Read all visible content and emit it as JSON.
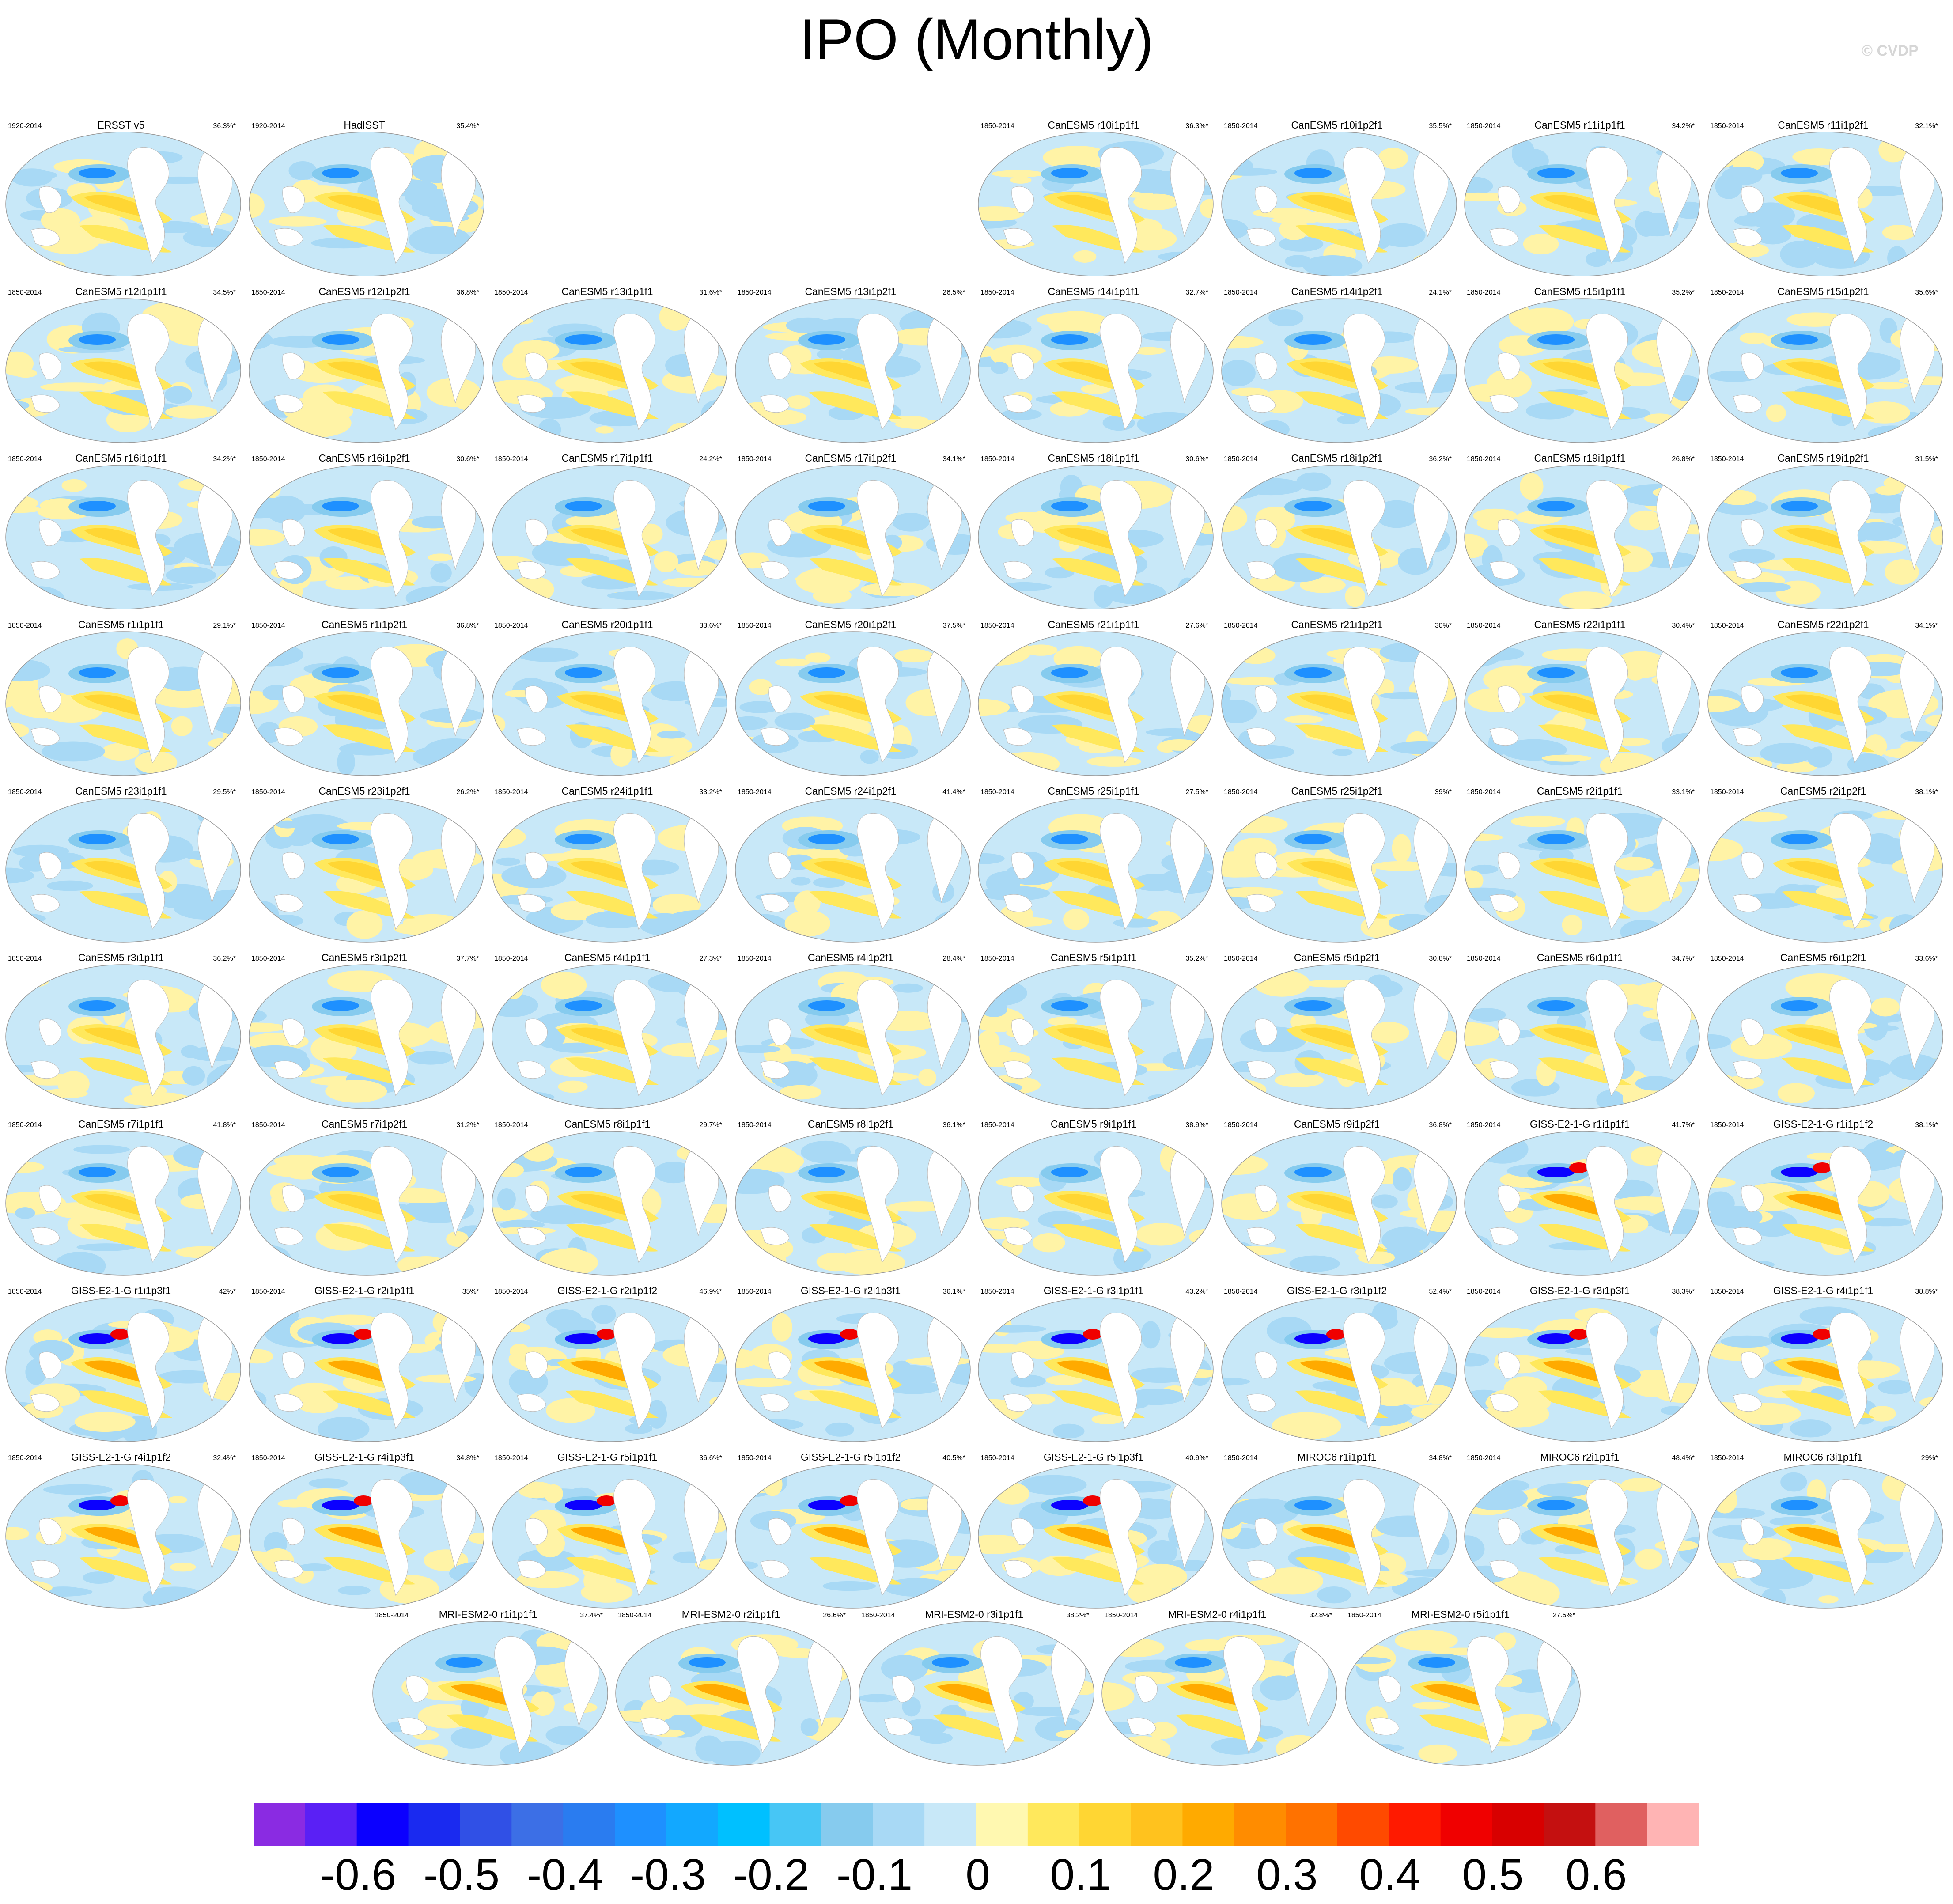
{
  "title": "IPO (Monthly)",
  "copyright": "© CVDP",
  "colorbar": {
    "colors": [
      "#8a2be2",
      "#5a20f5",
      "#0b00ff",
      "#1a2af0",
      "#3050e6",
      "#3c6fe6",
      "#2a7cf0",
      "#1e90ff",
      "#12a8ff",
      "#00c0ff",
      "#47c6f5",
      "#86cbee",
      "#a8d9f5",
      "#c8e8f8",
      "#fff8b0",
      "#ffe85c",
      "#ffd633",
      "#ffc21e",
      "#ffaa00",
      "#ff8c00",
      "#ff7200",
      "#ff4a00",
      "#ff1a00",
      "#f00000",
      "#d80000",
      "#c41010",
      "#e06060",
      "#ffb4b4"
    ],
    "labels": [
      "-0.6",
      "-0.5",
      "-0.4",
      "-0.3",
      "-0.2",
      "-0.1",
      "0",
      "0.1",
      "0.2",
      "0.3",
      "0.4",
      "0.5",
      "0.6"
    ]
  },
  "panels": [
    {
      "title": "ERSST v5",
      "years": "1920-2014",
      "pct": "36.3%*"
    },
    {
      "title": "HadISST",
      "years": "1920-2014",
      "pct": "35.4%*"
    },
    {
      "title": "CanESM5 r10i1p1f1",
      "years": "1850-2014",
      "pct": "36.3%*"
    },
    {
      "title": "CanESM5 r10i1p2f1",
      "years": "1850-2014",
      "pct": "35.5%*"
    },
    {
      "title": "CanESM5 r11i1p1f1",
      "years": "1850-2014",
      "pct": "34.2%*"
    },
    {
      "title": "CanESM5 r11i1p2f1",
      "years": "1850-2014",
      "pct": "32.1%*"
    },
    {
      "title": "CanESM5 r12i1p1f1",
      "years": "1850-2014",
      "pct": "34.5%*"
    },
    {
      "title": "CanESM5 r12i1p2f1",
      "years": "1850-2014",
      "pct": "36.8%*"
    },
    {
      "title": "CanESM5 r13i1p1f1",
      "years": "1850-2014",
      "pct": "31.6%*"
    },
    {
      "title": "CanESM5 r13i1p2f1",
      "years": "1850-2014",
      "pct": "26.5%*"
    },
    {
      "title": "CanESM5 r14i1p1f1",
      "years": "1850-2014",
      "pct": "32.7%*"
    },
    {
      "title": "CanESM5 r14i1p2f1",
      "years": "1850-2014",
      "pct": "24.1%*"
    },
    {
      "title": "CanESM5 r15i1p1f1",
      "years": "1850-2014",
      "pct": "35.2%*"
    },
    {
      "title": "CanESM5 r15i1p2f1",
      "years": "1850-2014",
      "pct": "35.6%*"
    },
    {
      "title": "CanESM5 r16i1p1f1",
      "years": "1850-2014",
      "pct": "34.2%*"
    },
    {
      "title": "CanESM5 r16i1p2f1",
      "years": "1850-2014",
      "pct": "30.6%*"
    },
    {
      "title": "CanESM5 r17i1p1f1",
      "years": "1850-2014",
      "pct": "24.2%*"
    },
    {
      "title": "CanESM5 r17i1p2f1",
      "years": "1850-2014",
      "pct": "34.1%*"
    },
    {
      "title": "CanESM5 r18i1p1f1",
      "years": "1850-2014",
      "pct": "30.6%*"
    },
    {
      "title": "CanESM5 r18i1p2f1",
      "years": "1850-2014",
      "pct": "36.2%*"
    },
    {
      "title": "CanESM5 r19i1p1f1",
      "years": "1850-2014",
      "pct": "26.8%*"
    },
    {
      "title": "CanESM5 r19i1p2f1",
      "years": "1850-2014",
      "pct": "31.5%*"
    },
    {
      "title": "CanESM5 r1i1p1f1",
      "years": "1850-2014",
      "pct": "29.1%*"
    },
    {
      "title": "CanESM5 r1i1p2f1",
      "years": "1850-2014",
      "pct": "36.8%*"
    },
    {
      "title": "CanESM5 r20i1p1f1",
      "years": "1850-2014",
      "pct": "33.6%*"
    },
    {
      "title": "CanESM5 r20i1p2f1",
      "years": "1850-2014",
      "pct": "37.5%*"
    },
    {
      "title": "CanESM5 r21i1p1f1",
      "years": "1850-2014",
      "pct": "27.6%*"
    },
    {
      "title": "CanESM5 r21i1p2f1",
      "years": "1850-2014",
      "pct": "30%*"
    },
    {
      "title": "CanESM5 r22i1p1f1",
      "years": "1850-2014",
      "pct": "30.4%*"
    },
    {
      "title": "CanESM5 r22i1p2f1",
      "years": "1850-2014",
      "pct": "34.1%*"
    },
    {
      "title": "CanESM5 r23i1p1f1",
      "years": "1850-2014",
      "pct": "29.5%*"
    },
    {
      "title": "CanESM5 r23i1p2f1",
      "years": "1850-2014",
      "pct": "26.2%*"
    },
    {
      "title": "CanESM5 r24i1p1f1",
      "years": "1850-2014",
      "pct": "33.2%*"
    },
    {
      "title": "CanESM5 r24i1p2f1",
      "years": "1850-2014",
      "pct": "41.4%*"
    },
    {
      "title": "CanESM5 r25i1p1f1",
      "years": "1850-2014",
      "pct": "27.5%*"
    },
    {
      "title": "CanESM5 r25i1p2f1",
      "years": "1850-2014",
      "pct": "39%*"
    },
    {
      "title": "CanESM5 r2i1p1f1",
      "years": "1850-2014",
      "pct": "33.1%*"
    },
    {
      "title": "CanESM5 r2i1p2f1",
      "years": "1850-2014",
      "pct": "38.1%*"
    },
    {
      "title": "CanESM5 r3i1p1f1",
      "years": "1850-2014",
      "pct": "36.2%*"
    },
    {
      "title": "CanESM5 r3i1p2f1",
      "years": "1850-2014",
      "pct": "37.7%*"
    },
    {
      "title": "CanESM5 r4i1p1f1",
      "years": "1850-2014",
      "pct": "27.3%*"
    },
    {
      "title": "CanESM5 r4i1p2f1",
      "years": "1850-2014",
      "pct": "28.4%*"
    },
    {
      "title": "CanESM5 r5i1p1f1",
      "years": "1850-2014",
      "pct": "35.2%*"
    },
    {
      "title": "CanESM5 r5i1p2f1",
      "years": "1850-2014",
      "pct": "30.8%*"
    },
    {
      "title": "CanESM5 r6i1p1f1",
      "years": "1850-2014",
      "pct": "34.7%*"
    },
    {
      "title": "CanESM5 r6i1p2f1",
      "years": "1850-2014",
      "pct": "33.6%*"
    },
    {
      "title": "CanESM5 r7i1p1f1",
      "years": "1850-2014",
      "pct": "41.8%*"
    },
    {
      "title": "CanESM5 r7i1p2f1",
      "years": "1850-2014",
      "pct": "31.2%*"
    },
    {
      "title": "CanESM5 r8i1p1f1",
      "years": "1850-2014",
      "pct": "29.7%*"
    },
    {
      "title": "CanESM5 r8i1p2f1",
      "years": "1850-2014",
      "pct": "36.1%*"
    },
    {
      "title": "CanESM5 r9i1p1f1",
      "years": "1850-2014",
      "pct": "38.9%*"
    },
    {
      "title": "CanESM5 r9i1p2f1",
      "years": "1850-2014",
      "pct": "36.8%*"
    },
    {
      "title": "GISS-E2-1-G r1i1p1f1",
      "years": "1850-2014",
      "pct": "41.7%*"
    },
    {
      "title": "GISS-E2-1-G r1i1p1f2",
      "years": "1850-2014",
      "pct": "38.1%*"
    },
    {
      "title": "GISS-E2-1-G r1i1p3f1",
      "years": "1850-2014",
      "pct": "42%*"
    },
    {
      "title": "GISS-E2-1-G r2i1p1f1",
      "years": "1850-2014",
      "pct": "35%*"
    },
    {
      "title": "GISS-E2-1-G r2i1p1f2",
      "years": "1850-2014",
      "pct": "46.9%*"
    },
    {
      "title": "GISS-E2-1-G r2i1p3f1",
      "years": "1850-2014",
      "pct": "36.1%*"
    },
    {
      "title": "GISS-E2-1-G r3i1p1f1",
      "years": "1850-2014",
      "pct": "43.2%*"
    },
    {
      "title": "GISS-E2-1-G r3i1p1f2",
      "years": "1850-2014",
      "pct": "52.4%*"
    },
    {
      "title": "GISS-E2-1-G r3i1p3f1",
      "years": "1850-2014",
      "pct": "38.3%*"
    },
    {
      "title": "GISS-E2-1-G r4i1p1f1",
      "years": "1850-2014",
      "pct": "38.8%*"
    },
    {
      "title": "GISS-E2-1-G r4i1p1f2",
      "years": "1850-2014",
      "pct": "32.4%*"
    },
    {
      "title": "GISS-E2-1-G r4i1p3f1",
      "years": "1850-2014",
      "pct": "34.8%*"
    },
    {
      "title": "GISS-E2-1-G r5i1p1f1",
      "years": "1850-2014",
      "pct": "36.6%*"
    },
    {
      "title": "GISS-E2-1-G r5i1p1f2",
      "years": "1850-2014",
      "pct": "40.5%*"
    },
    {
      "title": "GISS-E2-1-G r5i1p3f1",
      "years": "1850-2014",
      "pct": "40.9%*"
    },
    {
      "title": "MIROC6 r1i1p1f1",
      "years": "1850-2014",
      "pct": "34.8%*"
    },
    {
      "title": "MIROC6 r2i1p1f1",
      "years": "1850-2014",
      "pct": "48.4%*"
    },
    {
      "title": "MIROC6 r3i1p1f1",
      "years": "1850-2014",
      "pct": "29%*"
    },
    {
      "title": "MRI-ESM2-0 r1i1p1f1",
      "years": "1850-2014",
      "pct": "37.4%*"
    },
    {
      "title": "MRI-ESM2-0 r2i1p1f1",
      "years": "1850-2014",
      "pct": "26.6%*"
    },
    {
      "title": "MRI-ESM2-0 r3i1p1f1",
      "years": "1850-2014",
      "pct": "38.2%*"
    },
    {
      "title": "MRI-ESM2-0 r4i1p1f1",
      "years": "1850-2014",
      "pct": "32.8%*"
    },
    {
      "title": "MRI-ESM2-0 r5i1p1f1",
      "years": "1850-2014",
      "pct": "27.5%*"
    }
  ]
}
